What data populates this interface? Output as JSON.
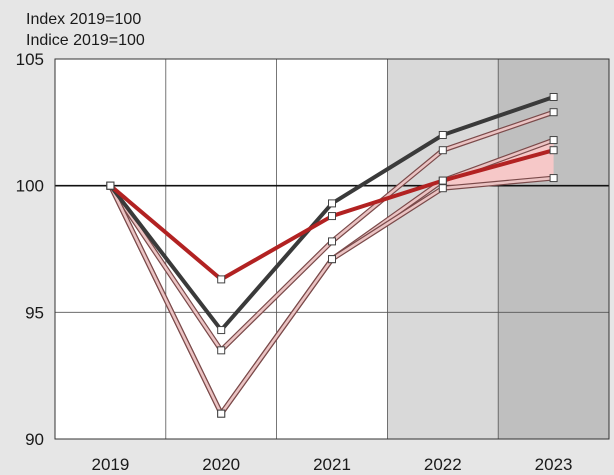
{
  "chart_data": {
    "type": "line",
    "ylabel_lines": [
      "Index 2019=100",
      "Indice 2019=100"
    ],
    "x": [
      "2019",
      "2020",
      "2021",
      "2022",
      "2023"
    ],
    "ylim": [
      90,
      105
    ],
    "yticks": [
      90,
      95,
      100,
      105
    ],
    "reference_line": 100,
    "forecast_shading": [
      {
        "year": "2022",
        "color": "#d9d9d9"
      },
      {
        "year": "2023",
        "color": "#bfbfbf"
      }
    ],
    "series": [
      {
        "values": [
          100,
          96.3,
          98.8,
          100.2,
          101.4
        ],
        "style": "red"
      },
      {
        "values": [
          100,
          94.3,
          99.3,
          102.0,
          103.5
        ],
        "style": "dark"
      },
      {
        "values": [
          100,
          93.5,
          97.8,
          101.4,
          102.9
        ],
        "style": "pale"
      },
      {
        "values": [
          100,
          91.0,
          97.1,
          100.2,
          101.8
        ],
        "style": "pale"
      },
      {
        "values": [
          100,
          91.0,
          97.1,
          99.9,
          100.3
        ],
        "style": "pale"
      }
    ],
    "band": {
      "x": [
        "2022",
        "2023"
      ],
      "lower": [
        99.9,
        100.3
      ],
      "upper": [
        100.2,
        101.8
      ],
      "color": "#f6c8c8"
    },
    "grid": true,
    "colors": {
      "red": "#b22222",
      "dark": "#3a3a3a",
      "pale_fill": "#ebc3c3",
      "pale_edge": "#7a4a4a"
    }
  }
}
